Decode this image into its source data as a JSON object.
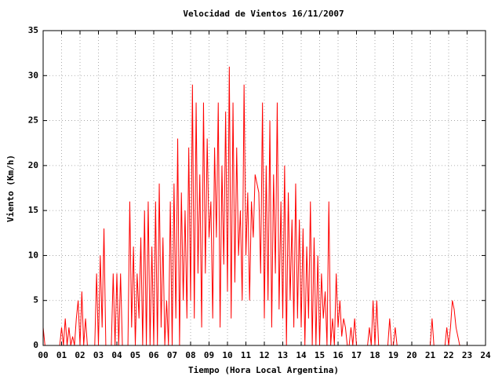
{
  "chart_data": {
    "type": "line",
    "title": "Velocidad de Vientos 16/11/2007",
    "xlabel": "Tiempo (Hora Local Argentina)",
    "ylabel": "Viento (Km/h)",
    "xlim": [
      0,
      24
    ],
    "ylim": [
      0,
      35
    ],
    "xticks": [
      {
        "value": 0,
        "label": "00"
      },
      {
        "value": 1,
        "label": "01"
      },
      {
        "value": 2,
        "label": "02"
      },
      {
        "value": 3,
        "label": "03"
      },
      {
        "value": 4,
        "label": "04"
      },
      {
        "value": 5,
        "label": "05"
      },
      {
        "value": 6,
        "label": "06"
      },
      {
        "value": 7,
        "label": "07"
      },
      {
        "value": 8,
        "label": "08"
      },
      {
        "value": 9,
        "label": "09"
      },
      10,
      11,
      12,
      13,
      14,
      15,
      16,
      17,
      18,
      19,
      20,
      21,
      22,
      23,
      24
    ],
    "yticks": [
      0,
      5,
      10,
      15,
      20,
      25,
      30,
      35
    ],
    "grid": true,
    "x": [
      0,
      0.1,
      0.2,
      0.3,
      0.4,
      0.5,
      0.6,
      0.7,
      0.8,
      0.9,
      1,
      1.1,
      1.2,
      1.3,
      1.4,
      1.5,
      1.6,
      1.7,
      1.8,
      1.9,
      2,
      2.1,
      2.2,
      2.3,
      2.4,
      2.5,
      2.6,
      2.7,
      2.8,
      2.9,
      3,
      3.1,
      3.2,
      3.3,
      3.4,
      3.5,
      3.6,
      3.7,
      3.8,
      3.9,
      4,
      4.1,
      4.2,
      4.3,
      4.4,
      4.5,
      4.6,
      4.7,
      4.8,
      4.9,
      5,
      5.1,
      5.2,
      5.3,
      5.4,
      5.5,
      5.6,
      5.7,
      5.8,
      5.9,
      6,
      6.1,
      6.2,
      6.3,
      6.4,
      6.5,
      6.6,
      6.7,
      6.8,
      6.9,
      7,
      7.1,
      7.2,
      7.3,
      7.4,
      7.5,
      7.6,
      7.7,
      7.8,
      7.9,
      8,
      8.1,
      8.2,
      8.3,
      8.4,
      8.5,
      8.6,
      8.7,
      8.8,
      8.9,
      9,
      9.1,
      9.2,
      9.3,
      9.4,
      9.5,
      9.6,
      9.7,
      9.8,
      9.9,
      10,
      10.1,
      10.2,
      10.3,
      10.4,
      10.5,
      10.6,
      10.7,
      10.8,
      10.9,
      11,
      11.1,
      11.2,
      11.3,
      11.4,
      11.5,
      11.6,
      11.7,
      11.8,
      11.9,
      12,
      12.1,
      12.2,
      12.3,
      12.4,
      12.5,
      12.6,
      12.7,
      12.8,
      12.9,
      13,
      13.1,
      13.2,
      13.3,
      13.4,
      13.5,
      13.6,
      13.7,
      13.8,
      13.9,
      14,
      14.1,
      14.2,
      14.3,
      14.4,
      14.5,
      14.6,
      14.7,
      14.8,
      14.9,
      15,
      15.1,
      15.2,
      15.3,
      15.4,
      15.5,
      15.6,
      15.7,
      15.8,
      15.9,
      16,
      16.1,
      16.2,
      16.3,
      16.4,
      16.5,
      16.6,
      16.7,
      16.8,
      16.9,
      17,
      17.1,
      17.2,
      17.3,
      17.4,
      17.5,
      17.6,
      17.7,
      17.8,
      17.9,
      18,
      18.1,
      18.2,
      18.3,
      18.4,
      18.5,
      18.6,
      18.7,
      18.8,
      18.9,
      19,
      19.1,
      19.2,
      19.3,
      19.4,
      19.5,
      19.6,
      19.7,
      19.8,
      19.9,
      20,
      20.1,
      20.2,
      20.3,
      20.4,
      20.5,
      20.6,
      20.7,
      20.8,
      20.9,
      21,
      21.1,
      21.2,
      21.3,
      21.4,
      21.5,
      21.6,
      21.7,
      21.8,
      21.9,
      22,
      22.1,
      22.2,
      22.3,
      22.4,
      22.5,
      22.6,
      22.7,
      22.8,
      22.9
    ],
    "series": [
      {
        "color": "#ff0000",
        "values": [
          2,
          0,
          0,
          0,
          0,
          0,
          0,
          0,
          0,
          0,
          2,
          0,
          3,
          0,
          2,
          0,
          1,
          0,
          3,
          5,
          0,
          6,
          0,
          3,
          0,
          0,
          0,
          0,
          0,
          8,
          0,
          10,
          2,
          13,
          0,
          0,
          0,
          0,
          8,
          0,
          8,
          0,
          8,
          0,
          0,
          0,
          0,
          16,
          2,
          11,
          0,
          8,
          3,
          12,
          0,
          15,
          0,
          16,
          0,
          11,
          0,
          16,
          0,
          18,
          2,
          12,
          0,
          5,
          0,
          16,
          0,
          18,
          3,
          23,
          0,
          17,
          5,
          15,
          3,
          22,
          5,
          29,
          3,
          27,
          8,
          19,
          2,
          27,
          8,
          23,
          12,
          16,
          3,
          22,
          12,
          27,
          2,
          20,
          9,
          26,
          6,
          31,
          3,
          27,
          7,
          22,
          10,
          15,
          5,
          29,
          10,
          17,
          5,
          16,
          12,
          19,
          18,
          17,
          8,
          27,
          3,
          20,
          5,
          25,
          2,
          19,
          8,
          27,
          4,
          16,
          3,
          20,
          0,
          17,
          5,
          14,
          2,
          18,
          3,
          14,
          2,
          13,
          0,
          11,
          3,
          16,
          0,
          12,
          0,
          10,
          0,
          8,
          3,
          6,
          0,
          16,
          0,
          3,
          0,
          8,
          2,
          5,
          1,
          3,
          2,
          0,
          0,
          2,
          0,
          3,
          0,
          0,
          0,
          0,
          0,
          0,
          0,
          2,
          0,
          5,
          0,
          5,
          0,
          0,
          0,
          0,
          0,
          0,
          3,
          0,
          0,
          2,
          0,
          0,
          0,
          0,
          0,
          0,
          0,
          0,
          0,
          0,
          0,
          0,
          0,
          0,
          0,
          0,
          0,
          0,
          0,
          3,
          0,
          0,
          0,
          0,
          0,
          0,
          0,
          2,
          0,
          2,
          5,
          4,
          2,
          1,
          0,
          0,
          0,
          0
        ]
      }
    ]
  }
}
